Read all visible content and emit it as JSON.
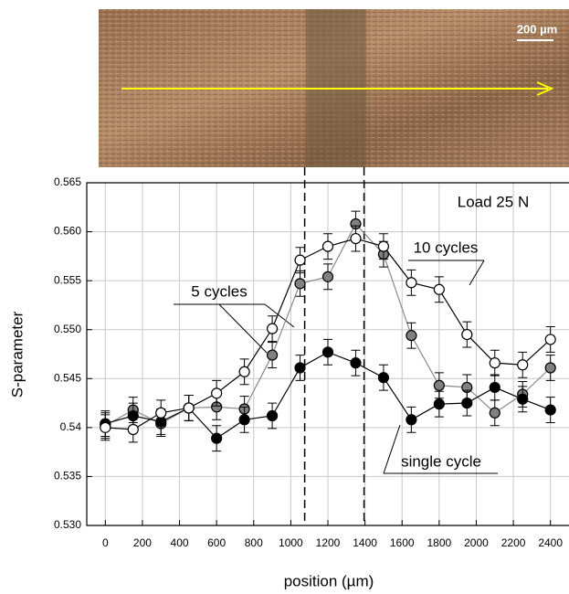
{
  "chart_data": {
    "type": "line",
    "photo_scale_label": "200 µm",
    "annotation": "Load 25 N",
    "x_label": "position (µm)",
    "y_label": "S-parameter",
    "series_labels": [
      "single cycle",
      "5 cycles",
      "10 cycles"
    ],
    "x": [
      0,
      150,
      300,
      450,
      600,
      750,
      900,
      1050,
      1200,
      1350,
      1500,
      1650,
      1800,
      1950,
      2100,
      2250,
      2400
    ],
    "series": [
      {
        "name": "5 cycles",
        "color": "#808080",
        "line_color": "#8a8a8a",
        "values": [
          0.5402,
          0.5418,
          0.5404,
          0.542,
          0.5421,
          0.5419,
          0.5474,
          0.5547,
          0.5554,
          0.5608,
          0.5577,
          0.5494,
          0.5443,
          0.5441,
          0.5415,
          0.5434,
          0.5461
        ],
        "errors": [
          0.0013,
          0.0013,
          0.0013,
          0.0013,
          0.0013,
          0.0013,
          0.0013,
          0.0013,
          0.0013,
          0.0013,
          0.0013,
          0.0013,
          0.0013,
          0.0013,
          0.0013,
          0.0013,
          0.0013
        ]
      },
      {
        "name": "single cycle",
        "color": "#000000",
        "line_color": "#000000",
        "values": [
          0.5404,
          0.5412,
          0.5406,
          0.542,
          0.5389,
          0.5408,
          0.5412,
          0.5461,
          0.5477,
          0.5466,
          0.5451,
          0.5408,
          0.5424,
          0.5425,
          0.5441,
          0.5429,
          0.5418
        ],
        "errors": [
          0.0013,
          0.0013,
          0.0013,
          0.0013,
          0.0013,
          0.0013,
          0.0013,
          0.0013,
          0.0013,
          0.0013,
          0.0013,
          0.0013,
          0.0013,
          0.0013,
          0.0013,
          0.0013,
          0.0013
        ]
      },
      {
        "name": "10 cycles",
        "color": "#ffffff",
        "line_color": "#000000",
        "values": [
          0.54,
          0.5398,
          0.5415,
          0.542,
          0.5435,
          0.5457,
          0.5501,
          0.5571,
          0.5585,
          0.5593,
          0.5585,
          0.5548,
          0.5541,
          0.5495,
          0.5466,
          0.5464,
          0.549
        ],
        "errors": [
          0.0013,
          0.0013,
          0.0013,
          0.0013,
          0.0013,
          0.0013,
          0.0013,
          0.0013,
          0.0013,
          0.0013,
          0.0013,
          0.0013,
          0.0013,
          0.0013,
          0.0013,
          0.0013,
          0.0013
        ]
      }
    ],
    "vlines": [
      1075,
      1395
    ],
    "xlim": [
      -100,
      2500
    ],
    "xticks": [
      0,
      200,
      400,
      600,
      800,
      1000,
      1200,
      1400,
      1600,
      1800,
      2000,
      2200,
      2400
    ],
    "ylim": [
      0.53,
      0.565
    ],
    "yticks": [
      {
        "value": 0.53,
        "label": "0.530"
      },
      0.535,
      0.54,
      0.545,
      {
        "value": 0.55,
        "label": "0.550"
      },
      0.555,
      {
        "value": 0.56,
        "label": "0.560"
      },
      0.565
    ],
    "grid": true
  }
}
